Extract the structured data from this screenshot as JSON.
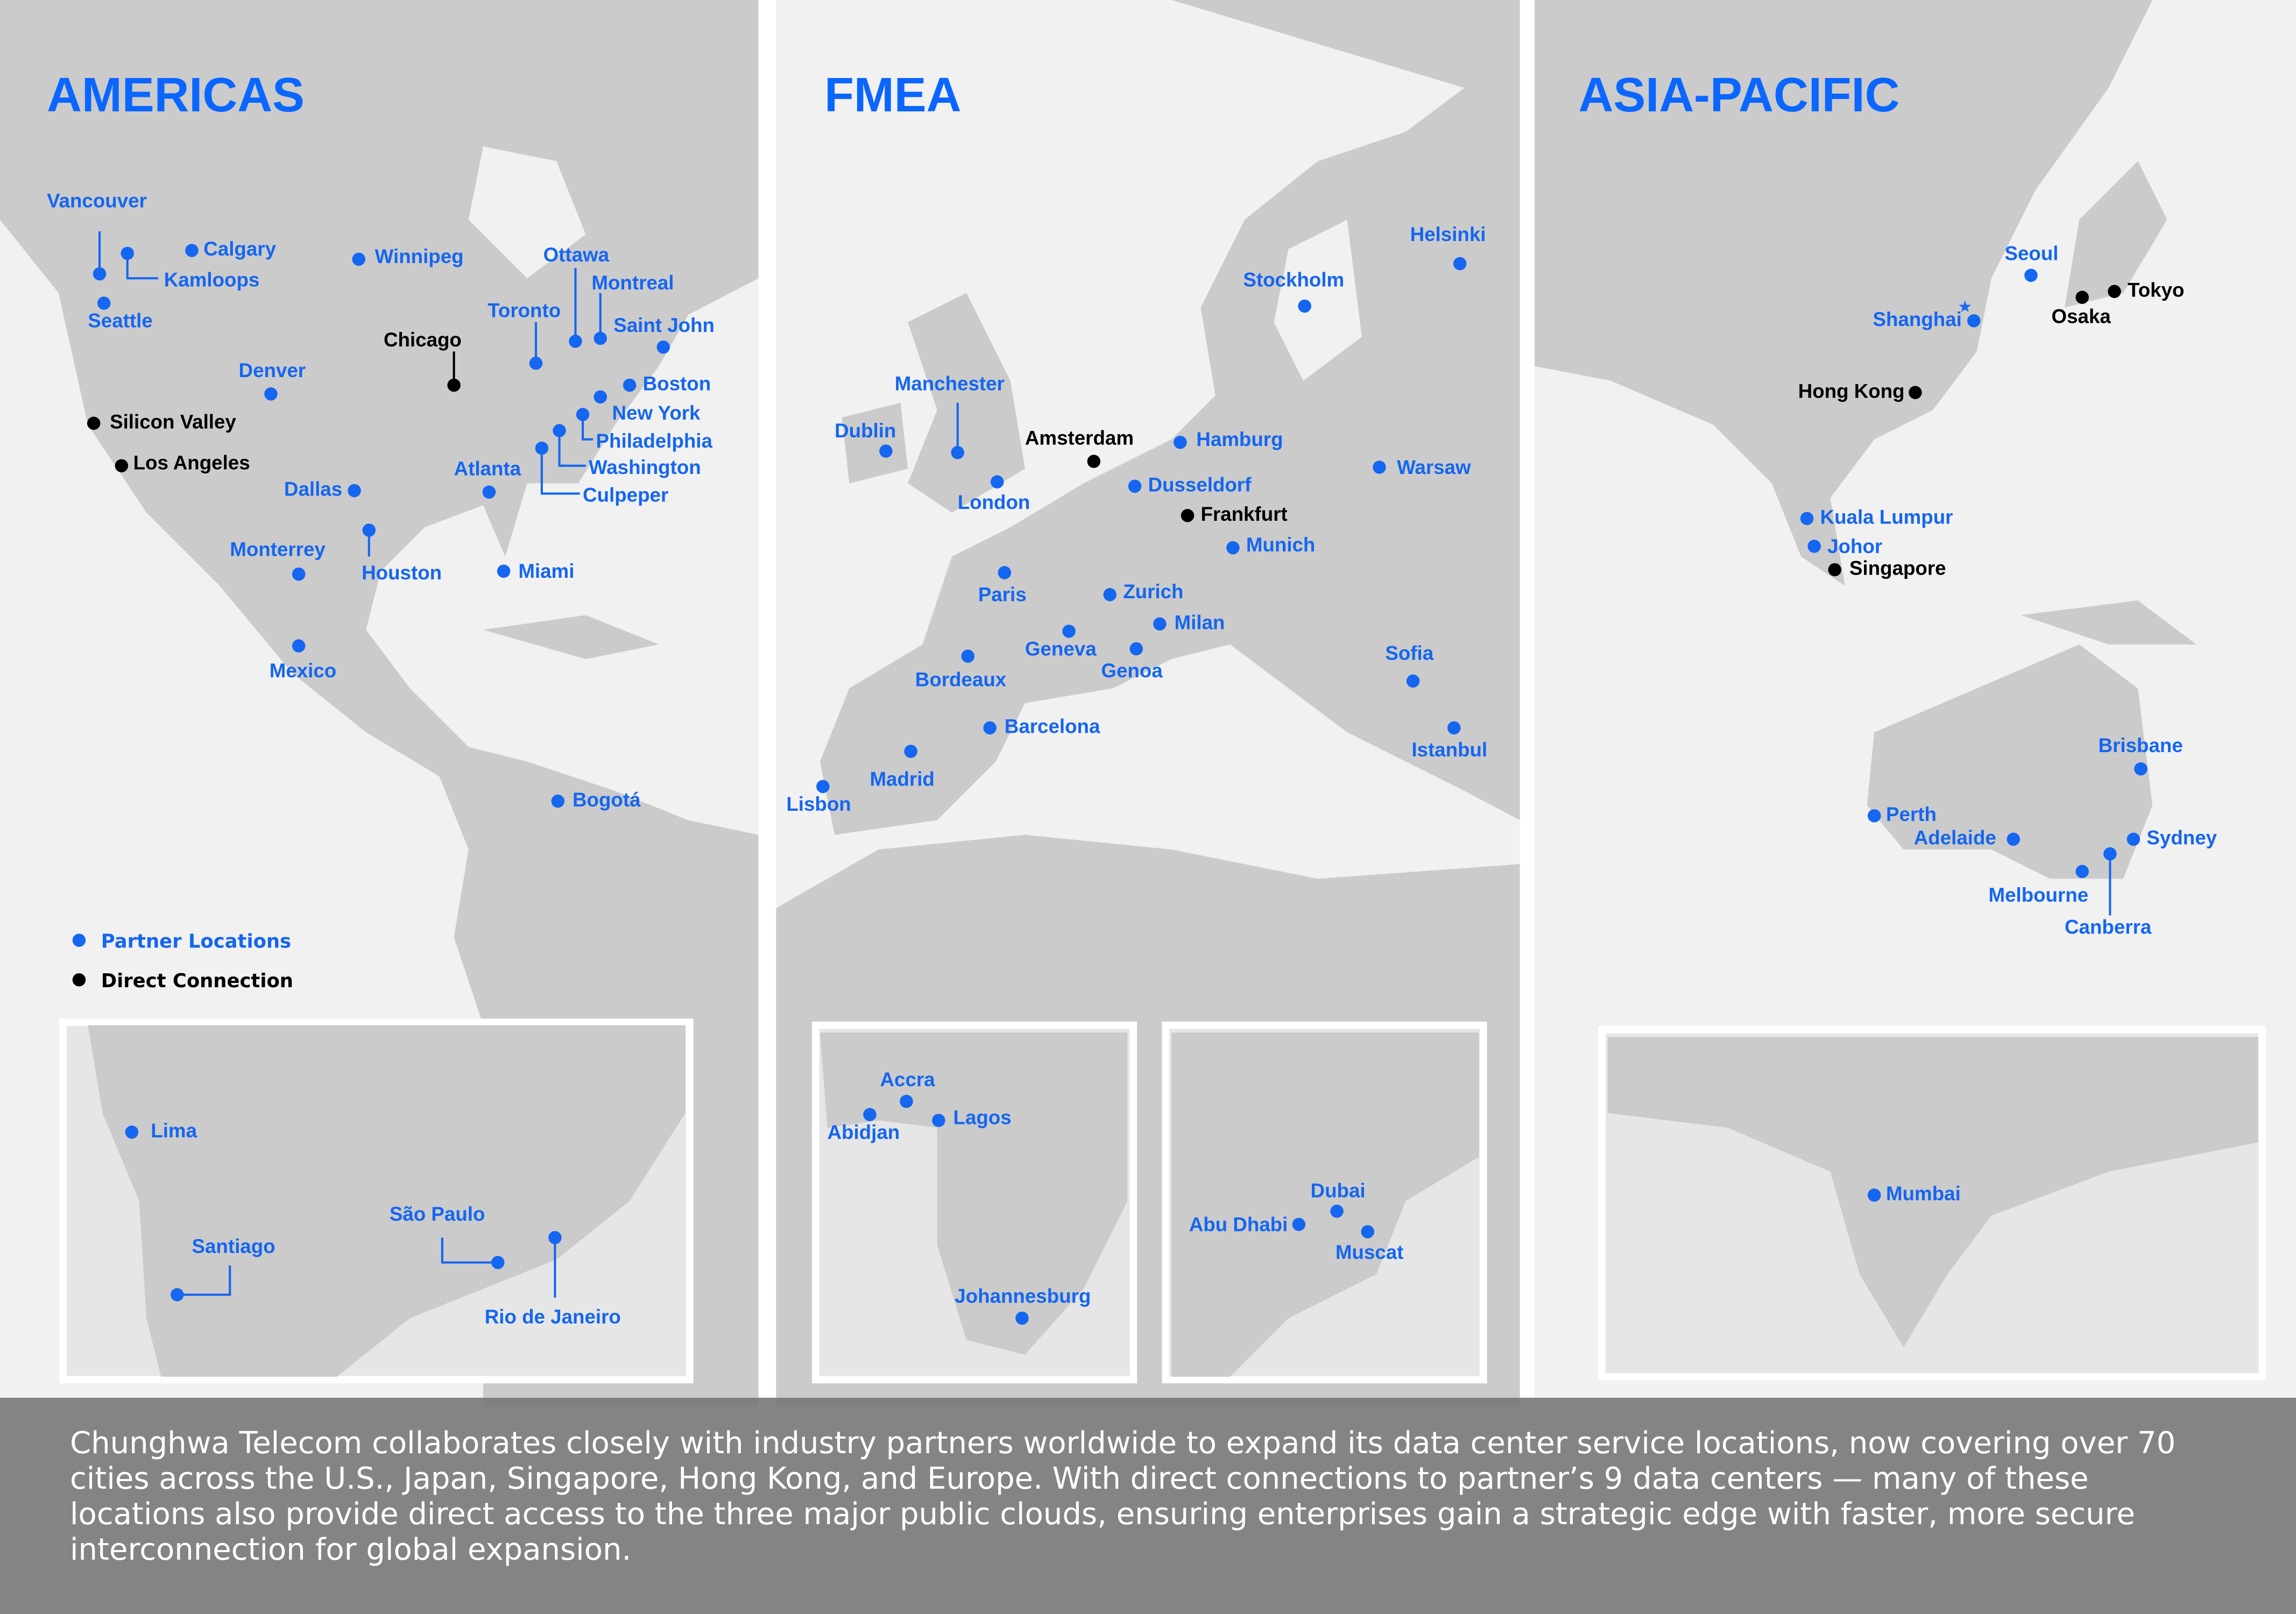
{
  "colors": {
    "partner": "#1566f0",
    "direct": "#000000",
    "land": "#cbcbcb",
    "sea": "#f1f1f1",
    "title": "#0a66ff"
  },
  "legend": {
    "partner": "Partner Locations",
    "direct": "Direct Connection"
  },
  "regions": [
    {
      "title": "AMERICAS",
      "cities": [
        {
          "name": "Vancouver",
          "type": "partner"
        },
        {
          "name": "Calgary",
          "type": "partner"
        },
        {
          "name": "Kamloops",
          "type": "partner"
        },
        {
          "name": "Seattle",
          "type": "partner"
        },
        {
          "name": "Winnipeg",
          "type": "partner"
        },
        {
          "name": "Ottawa",
          "type": "partner"
        },
        {
          "name": "Montreal",
          "type": "partner"
        },
        {
          "name": "Toronto",
          "type": "partner"
        },
        {
          "name": "Saint John",
          "type": "partner"
        },
        {
          "name": "Chicago",
          "type": "direct"
        },
        {
          "name": "Boston",
          "type": "partner"
        },
        {
          "name": "Denver",
          "type": "partner"
        },
        {
          "name": "New York",
          "type": "partner"
        },
        {
          "name": "Philadelphia",
          "type": "partner"
        },
        {
          "name": "Washington",
          "type": "partner"
        },
        {
          "name": "Culpeper",
          "type": "partner"
        },
        {
          "name": "Silicon Valley",
          "type": "direct"
        },
        {
          "name": "Los Angeles",
          "type": "direct"
        },
        {
          "name": "Atlanta",
          "type": "partner"
        },
        {
          "name": "Dallas",
          "type": "partner"
        },
        {
          "name": "Houston",
          "type": "partner"
        },
        {
          "name": "Monterrey",
          "type": "partner"
        },
        {
          "name": "Miami",
          "type": "partner"
        },
        {
          "name": "Mexico",
          "type": "partner"
        },
        {
          "name": "Bogotá",
          "type": "partner"
        },
        {
          "name": "Lima",
          "type": "partner"
        },
        {
          "name": "Santiago",
          "type": "partner"
        },
        {
          "name": "São Paulo",
          "type": "partner"
        },
        {
          "name": "Rio de Janeiro",
          "type": "partner"
        }
      ]
    },
    {
      "title": "FMEA",
      "cities": [
        {
          "name": "Helsinki",
          "type": "partner"
        },
        {
          "name": "Stockholm",
          "type": "partner"
        },
        {
          "name": "Manchester",
          "type": "partner"
        },
        {
          "name": "Dublin",
          "type": "partner"
        },
        {
          "name": "Amsterdam",
          "type": "direct"
        },
        {
          "name": "Hamburg",
          "type": "partner"
        },
        {
          "name": "Warsaw",
          "type": "partner"
        },
        {
          "name": "London",
          "type": "partner"
        },
        {
          "name": "Dusseldorf",
          "type": "partner"
        },
        {
          "name": "Frankfurt",
          "type": "direct"
        },
        {
          "name": "Munich",
          "type": "partner"
        },
        {
          "name": "Paris",
          "type": "partner"
        },
        {
          "name": "Zurich",
          "type": "partner"
        },
        {
          "name": "Milan",
          "type": "partner"
        },
        {
          "name": "Geneva",
          "type": "partner"
        },
        {
          "name": "Genoa",
          "type": "partner"
        },
        {
          "name": "Sofia",
          "type": "partner"
        },
        {
          "name": "Bordeaux",
          "type": "partner"
        },
        {
          "name": "Barcelona",
          "type": "partner"
        },
        {
          "name": "Istanbul",
          "type": "partner"
        },
        {
          "name": "Madrid",
          "type": "partner"
        },
        {
          "name": "Lisbon",
          "type": "partner"
        },
        {
          "name": "Accra",
          "type": "partner"
        },
        {
          "name": "Abidjan",
          "type": "partner"
        },
        {
          "name": "Lagos",
          "type": "partner"
        },
        {
          "name": "Johannesburg",
          "type": "partner"
        },
        {
          "name": "Dubai",
          "type": "partner"
        },
        {
          "name": "Abu Dhabi",
          "type": "partner"
        },
        {
          "name": "Muscat",
          "type": "partner"
        }
      ]
    },
    {
      "title": "ASIA-PACIFIC",
      "cities": [
        {
          "name": "Seoul",
          "type": "partner"
        },
        {
          "name": "Tokyo",
          "type": "direct"
        },
        {
          "name": "Osaka",
          "type": "direct"
        },
        {
          "name": "Shanghai",
          "type": "partner"
        },
        {
          "name": "Hong Kong",
          "type": "direct"
        },
        {
          "name": "Kuala Lumpur",
          "type": "partner"
        },
        {
          "name": "Johor",
          "type": "partner"
        },
        {
          "name": "Singapore",
          "type": "direct"
        },
        {
          "name": "Brisbane",
          "type": "partner"
        },
        {
          "name": "Perth",
          "type": "partner"
        },
        {
          "name": "Adelaide",
          "type": "partner"
        },
        {
          "name": "Sydney",
          "type": "partner"
        },
        {
          "name": "Canberra",
          "type": "partner"
        },
        {
          "name": "Melbourne",
          "type": "partner"
        },
        {
          "name": "Mumbai",
          "type": "partner"
        }
      ]
    }
  ],
  "caption": "Chunghwa Telecom collaborates closely with industry partners worldwide to expand its data center service locations, now covering over 70 cities across the U.S., Japan, Singapore, Hong Kong, and Europe. With direct connections to partner’s 9 data centers — many of these locations also provide direct access to the three major public clouds, ensuring enterprises gain a strategic edge with faster, more secure interconnection for global expansion."
}
